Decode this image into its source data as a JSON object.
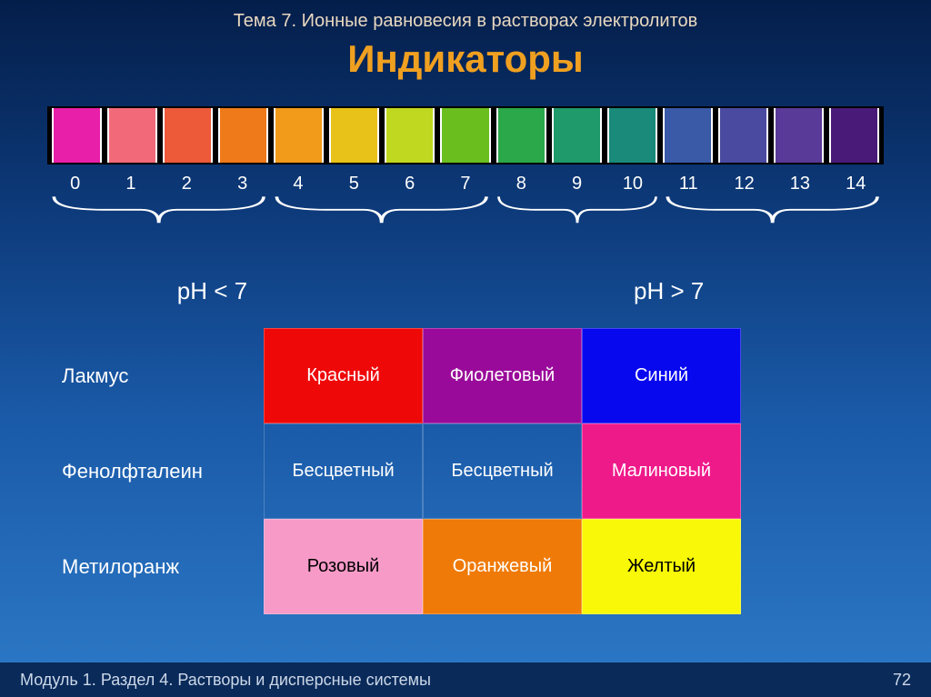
{
  "header": {
    "topic": "Тема 7. Ионные равновесия в растворах электролитов",
    "title": "Индикаторы",
    "topic_color": "#e8d8c0",
    "title_color": "#f0a020"
  },
  "ph_scale": {
    "values": [
      "0",
      "1",
      "2",
      "3",
      "4",
      "5",
      "6",
      "7",
      "8",
      "9",
      "10",
      "11",
      "12",
      "13",
      "14"
    ],
    "colors": [
      "#e81fa8",
      "#f26a7a",
      "#ed5a3a",
      "#ee7a1a",
      "#f29a1a",
      "#e8c218",
      "#c0d81f",
      "#6abf1f",
      "#2aa84a",
      "#1f9a6a",
      "#1a8a7a",
      "#3a5aa8",
      "#4a4aa0",
      "#5a3a98",
      "#4a1a78"
    ],
    "groups": [
      {
        "span": 4
      },
      {
        "span": 4
      },
      {
        "span": 3
      },
      {
        "span": 4
      }
    ],
    "labels": {
      "left": "рН < 7",
      "right": "рН > 7"
    }
  },
  "indicators": {
    "rows": [
      {
        "name": "Лакмус",
        "cells": [
          {
            "text": "Красный",
            "bg": "#ef0808",
            "fg": "#ffffff"
          },
          {
            "text": "Фиолетовый",
            "bg": "#9a0a9a",
            "fg": "#ffffff"
          },
          {
            "text": "Синий",
            "bg": "#0808ef",
            "fg": "#ffffff"
          }
        ]
      },
      {
        "name": "Фенолфталеин",
        "cells": [
          {
            "text": "Бесцветный",
            "bg": "",
            "fg": "#ffffff"
          },
          {
            "text": "Бесцветный",
            "bg": "",
            "fg": "#ffffff"
          },
          {
            "text": "Малиновый",
            "bg": "#ef1a8a",
            "fg": "#ffffff"
          }
        ]
      },
      {
        "name": "Метилоранж",
        "cells": [
          {
            "text": "Розовый",
            "bg": "#f89ac8",
            "fg": "#000000"
          },
          {
            "text": "Оранжевый",
            "bg": "#ef7a08",
            "fg": "#ffffff"
          },
          {
            "text": "Желтый",
            "bg": "#f8f808",
            "fg": "#000000"
          }
        ]
      }
    ]
  },
  "footer": {
    "module": "Модуль 1. Раздел 4. Растворы и дисперсные системы",
    "page": "72"
  }
}
